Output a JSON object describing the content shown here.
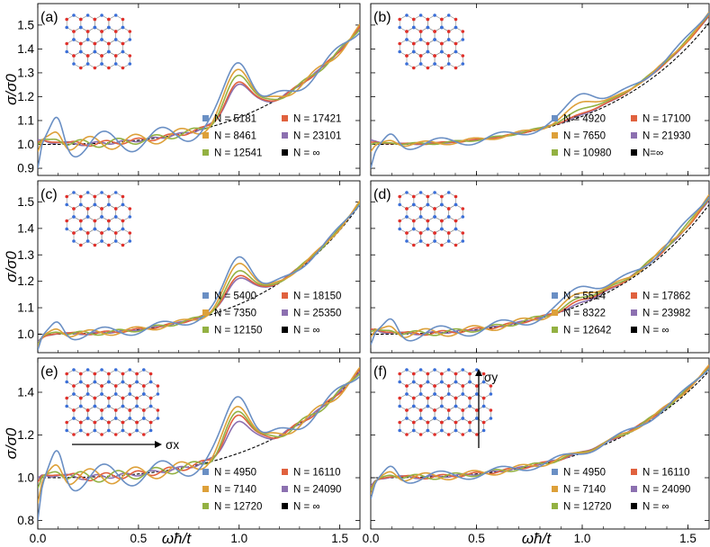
{
  "figure": {
    "ylabel": "σ/σ0",
    "xlabel": "ωħ/t"
  },
  "chart_data": [
    {
      "type": "line",
      "panel": "(a)",
      "xlim": [
        0,
        1.6
      ],
      "ylim": [
        0.87,
        1.59
      ],
      "xticks": [
        "0.0",
        "0.5",
        "1.0",
        "1.5"
      ],
      "yticks": [
        "0.9",
        "1.0",
        "1.1",
        "1.2",
        "1.3",
        "1.4",
        "1.5"
      ],
      "series": [
        {
          "name": "N = 5181",
          "color": "#6a8fc4",
          "first_value": 0.9,
          "end_value": 1.49,
          "peak": 1.36,
          "ripple": 0.06
        },
        {
          "name": "N = 8461",
          "color": "#dda039",
          "first_value": 0.97,
          "end_value": 1.49,
          "peak": 1.32,
          "ripple": 0.035
        },
        {
          "name": "N = 12541",
          "color": "#93b142",
          "first_value": 1.0,
          "end_value": 1.49,
          "peak": 1.29,
          "ripple": 0.02
        },
        {
          "name": "N = 17421",
          "color": "#e0613e",
          "first_value": 1.01,
          "end_value": 1.49,
          "peak": 1.26,
          "ripple": 0.012
        },
        {
          "name": "N = 23101",
          "color": "#8c70b0",
          "first_value": 1.02,
          "end_value": 1.49,
          "peak": 1.25,
          "ripple": 0.008
        }
      ],
      "limit": {
        "name": "N = ∞",
        "color": "#000000",
        "start_value": 1.0,
        "end_value": 1.49
      }
    },
    {
      "type": "line",
      "panel": "(b)",
      "xlim": [
        0,
        1.6
      ],
      "ylim": [
        0.87,
        1.59
      ],
      "xticks": [
        "0.0",
        "0.5",
        "1.0",
        "1.5"
      ],
      "yticks": [],
      "series": [
        {
          "name": "N = 4920",
          "color": "#6a8fc4",
          "first_value": 0.9,
          "end_value": 1.56,
          "peak": 1.22,
          "ripple": 0.025
        },
        {
          "name": "N = 7650",
          "color": "#dda039",
          "first_value": 0.97,
          "end_value": 1.55,
          "peak": 1.18,
          "ripple": 0.012
        },
        {
          "name": "N = 10980",
          "color": "#93b142",
          "first_value": 1.0,
          "end_value": 1.55,
          "peak": 1.15,
          "ripple": 0.006
        },
        {
          "name": "N = 17100",
          "color": "#e0613e",
          "first_value": 1.01,
          "end_value": 1.54,
          "peak": 1.13,
          "ripple": 0.004
        },
        {
          "name": "N = 21930",
          "color": "#8c70b0",
          "first_value": 1.02,
          "end_value": 1.54,
          "peak": 1.12,
          "ripple": 0.003
        }
      ],
      "limit": {
        "name": "N=∞",
        "color": "#000000",
        "start_value": 1.0,
        "end_value": 1.51
      }
    },
    {
      "type": "line",
      "panel": "(c)",
      "xlim": [
        0,
        1.6
      ],
      "ylim": [
        0.93,
        1.58
      ],
      "xticks": [
        "0.0",
        "0.5",
        "1.0",
        "1.5"
      ],
      "yticks": [
        "1.0",
        "1.1",
        "1.2",
        "1.3",
        "1.4",
        "1.5"
      ],
      "series": [
        {
          "name": "N = 5400",
          "color": "#6a8fc4",
          "first_value": 0.94,
          "end_value": 1.5,
          "peak": 1.3,
          "ripple": 0.025
        },
        {
          "name": "N = 7350",
          "color": "#dda039",
          "first_value": 0.95,
          "end_value": 1.5,
          "peak": 1.27,
          "ripple": 0.015
        },
        {
          "name": "N = 12150",
          "color": "#93b142",
          "first_value": 0.96,
          "end_value": 1.5,
          "peak": 1.24,
          "ripple": 0.01
        },
        {
          "name": "N = 18150",
          "color": "#e0613e",
          "first_value": 0.96,
          "end_value": 1.5,
          "peak": 1.22,
          "ripple": 0.006
        },
        {
          "name": "N = 25350",
          "color": "#8c70b0",
          "first_value": 0.97,
          "end_value": 1.5,
          "peak": 1.21,
          "ripple": 0.004
        }
      ],
      "limit": {
        "name": "N = ∞",
        "color": "#000000",
        "start_value": 1.0,
        "end_value": 1.49
      }
    },
    {
      "type": "line",
      "panel": "(d)",
      "xlim": [
        0,
        1.6
      ],
      "ylim": [
        0.93,
        1.58
      ],
      "xticks": [
        "0.0",
        "0.5",
        "1.0",
        "1.5"
      ],
      "yticks": [],
      "series": [
        {
          "name": "N = 5514",
          "color": "#6a8fc4",
          "first_value": 0.96,
          "end_value": 1.53,
          "peak": 1.19,
          "ripple": 0.03
        },
        {
          "name": "N = 8322",
          "color": "#dda039",
          "first_value": 0.99,
          "end_value": 1.52,
          "peak": 1.16,
          "ripple": 0.02
        },
        {
          "name": "N = 12642",
          "color": "#93b142",
          "first_value": 1.01,
          "end_value": 1.52,
          "peak": 1.14,
          "ripple": 0.012
        },
        {
          "name": "N = 17862",
          "color": "#e0613e",
          "first_value": 1.02,
          "end_value": 1.51,
          "peak": 1.13,
          "ripple": 0.008
        },
        {
          "name": "N = 23982",
          "color": "#8c70b0",
          "first_value": 1.02,
          "end_value": 1.51,
          "peak": 1.12,
          "ripple": 0.005
        }
      ],
      "limit": {
        "name": "N = ∞",
        "color": "#000000",
        "start_value": 1.0,
        "end_value": 1.49
      }
    },
    {
      "type": "line",
      "panel": "(e)",
      "xlim": [
        0,
        1.6
      ],
      "ylim": [
        0.76,
        1.56
      ],
      "xticks": [
        "0.0",
        "0.5",
        "1.0",
        "1.5"
      ],
      "yticks": [
        "0.8",
        "1.0",
        "1.2",
        "1.4"
      ],
      "annotation": "σx",
      "series": [
        {
          "name": "N = 4950",
          "color": "#6a8fc4",
          "first_value": 0.8,
          "end_value": 1.5,
          "peak": 1.4,
          "ripple": 0.07
        },
        {
          "name": "N = 7140",
          "color": "#dda039",
          "first_value": 0.88,
          "end_value": 1.5,
          "peak": 1.34,
          "ripple": 0.045
        },
        {
          "name": "N = 12720",
          "color": "#93b142",
          "first_value": 0.95,
          "end_value": 1.5,
          "peak": 1.31,
          "ripple": 0.03
        },
        {
          "name": "N = 16110",
          "color": "#e0613e",
          "first_value": 0.98,
          "end_value": 1.5,
          "peak": 1.29,
          "ripple": 0.02
        },
        {
          "name": "N = 24090",
          "color": "#8c70b0",
          "first_value": 1.0,
          "end_value": 1.5,
          "peak": 1.26,
          "ripple": 0.012
        }
      ],
      "limit": {
        "name": "N = ∞",
        "color": "#000000",
        "start_value": 1.0,
        "end_value": 1.5
      }
    },
    {
      "type": "line",
      "panel": "(f)",
      "xlim": [
        0,
        1.6
      ],
      "ylim": [
        0.76,
        1.56
      ],
      "xticks": [
        "0.0",
        "0.5",
        "1.0",
        "1.5"
      ],
      "yticks": [],
      "annotation": "σy",
      "series": [
        {
          "name": "N = 4950",
          "color": "#6a8fc4",
          "first_value": 0.9,
          "end_value": 1.52,
          "peak": 1.1,
          "ripple": 0.03
        },
        {
          "name": "N = 7140",
          "color": "#dda039",
          "first_value": 0.92,
          "end_value": 1.52,
          "peak": 1.09,
          "ripple": 0.022
        },
        {
          "name": "N = 12720",
          "color": "#93b142",
          "first_value": 0.94,
          "end_value": 1.52,
          "peak": 1.08,
          "ripple": 0.015
        },
        {
          "name": "N = 16110",
          "color": "#e0613e",
          "first_value": 0.95,
          "end_value": 1.52,
          "peak": 1.08,
          "ripple": 0.01
        },
        {
          "name": "N = 24090",
          "color": "#8c70b0",
          "first_value": 0.96,
          "end_value": 1.52,
          "peak": 1.07,
          "ripple": 0.007
        }
      ],
      "limit": {
        "name": "N = ∞",
        "color": "#000000",
        "start_value": 1.0,
        "end_value": 1.5
      }
    }
  ]
}
